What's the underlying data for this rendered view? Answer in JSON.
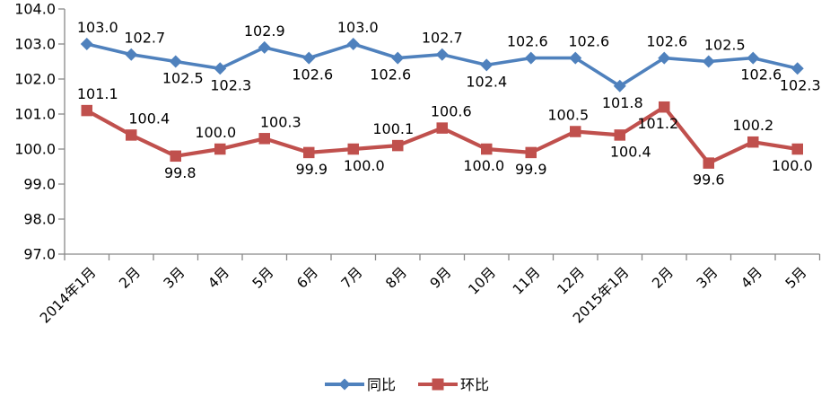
{
  "chart_data": {
    "type": "line",
    "title": "",
    "xlabel": "",
    "ylabel": "",
    "grid": false,
    "legend_position": "bottom",
    "categories": [
      "2014年1月",
      "2月",
      "3月",
      "4月",
      "5月",
      "6月",
      "7月",
      "8月",
      "9月",
      "10月",
      "11月",
      "12月",
      "2015年1月",
      "2月",
      "3月",
      "4月",
      "5月"
    ],
    "y_axis": {
      "min": 97.0,
      "max": 104.0,
      "step": 1.0,
      "tick_labels_top_to_bottom": [
        "104.0",
        "103.0",
        "102.0",
        "101.0",
        "100.0",
        "99.0",
        "98.0",
        "97.0"
      ]
    },
    "series": [
      {
        "name": "同比",
        "color": "#4F81BD",
        "marker": "diamond",
        "line_width": 3.6,
        "values": [
          103.0,
          102.7,
          102.5,
          102.3,
          102.9,
          102.6,
          103.0,
          102.6,
          102.7,
          102.4,
          102.6,
          102.6,
          101.8,
          102.6,
          102.5,
          102.6,
          102.3
        ],
        "labels": [
          {
            "text": "103.0",
            "pos": "above",
            "dx": 12
          },
          {
            "text": "102.7",
            "pos": "above",
            "dx": 15
          },
          {
            "text": "102.5",
            "pos": "below",
            "dx": 8
          },
          {
            "text": "102.3",
            "pos": "below",
            "dx": 12
          },
          {
            "text": "102.9",
            "pos": "above",
            "dx": 0
          },
          {
            "text": "102.6",
            "pos": "below",
            "dx": 4
          },
          {
            "text": "103.0",
            "pos": "above",
            "dx": 5
          },
          {
            "text": "102.6",
            "pos": "below",
            "dx": -8
          },
          {
            "text": "102.7",
            "pos": "above",
            "dx": 0
          },
          {
            "text": "102.4",
            "pos": "below",
            "dx": 0
          },
          {
            "text": "102.6",
            "pos": "above",
            "dx": -4
          },
          {
            "text": "102.6",
            "pos": "above",
            "dx": 15
          },
          {
            "text": "101.8",
            "pos": "below",
            "dx": 3
          },
          {
            "text": "102.6",
            "pos": "above",
            "dx": 3
          },
          {
            "text": "102.5",
            "pos": "above",
            "dx": 18
          },
          {
            "text": "102.6",
            "pos": "below",
            "dx": 9
          },
          {
            "text": "102.3",
            "pos": "below",
            "dx": 3
          }
        ]
      },
      {
        "name": "环比",
        "color": "#C0504D",
        "marker": "square",
        "line_width": 4.2,
        "values": [
          101.1,
          100.4,
          99.8,
          100.0,
          100.3,
          99.9,
          100.0,
          100.1,
          100.6,
          100.0,
          99.9,
          100.5,
          100.4,
          101.2,
          99.6,
          100.2,
          100.0
        ],
        "labels": [
          {
            "text": "101.1",
            "pos": "above",
            "dx": 12
          },
          {
            "text": "100.4",
            "pos": "above",
            "dx": 20
          },
          {
            "text": "99.8",
            "pos": "below",
            "dx": 5
          },
          {
            "text": "100.0",
            "pos": "above",
            "dx": -5
          },
          {
            "text": "100.3",
            "pos": "above",
            "dx": 18
          },
          {
            "text": "99.9",
            "pos": "below",
            "dx": 3
          },
          {
            "text": "100.0",
            "pos": "below",
            "dx": 12
          },
          {
            "text": "100.1",
            "pos": "above",
            "dx": -5
          },
          {
            "text": "100.6",
            "pos": "above",
            "dx": 10
          },
          {
            "text": "100.0",
            "pos": "below",
            "dx": -3
          },
          {
            "text": "99.9",
            "pos": "below",
            "dx": 0
          },
          {
            "text": "100.5",
            "pos": "above",
            "dx": -8
          },
          {
            "text": "100.4",
            "pos": "below",
            "dx": 12
          },
          {
            "text": "101.2",
            "pos": "below",
            "dx": -7
          },
          {
            "text": "99.6",
            "pos": "below",
            "dx": 0
          },
          {
            "text": "100.2",
            "pos": "above",
            "dx": 0
          },
          {
            "text": "100.0",
            "pos": "below",
            "dx": -6
          }
        ]
      }
    ]
  }
}
